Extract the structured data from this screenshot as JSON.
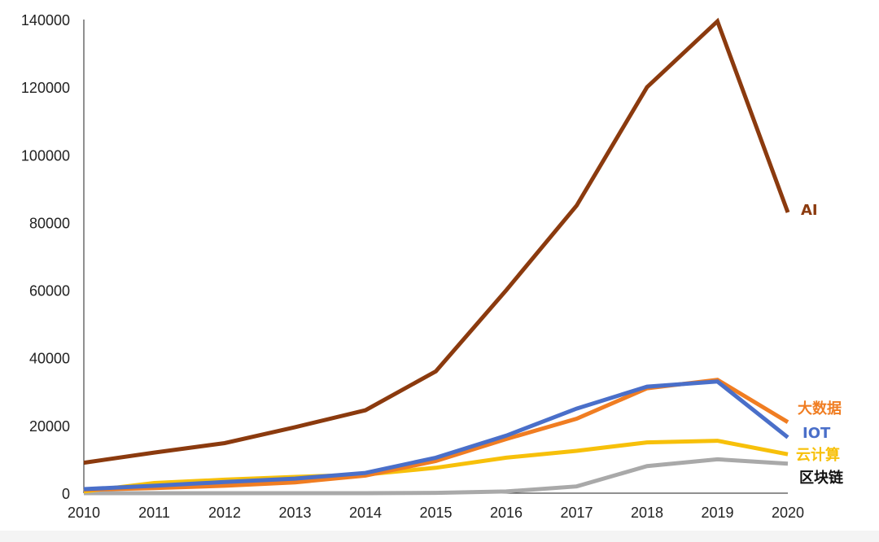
{
  "chart_data": {
    "type": "line",
    "title": "",
    "xlabel": "",
    "ylabel": "",
    "x": [
      "2010",
      "2011",
      "2012",
      "2013",
      "2014",
      "2015",
      "2016",
      "2017",
      "2018",
      "2019",
      "2020"
    ],
    "yticks": [
      "0",
      "20000",
      "40000",
      "60000",
      "80000",
      "100000",
      "120000",
      "140000"
    ],
    "ylim": [
      0,
      140000
    ],
    "grid": false,
    "legend": "direct labels at line ends",
    "series": [
      {
        "name": "AI",
        "color": "#8B3A0E",
        "values": [
          9000,
          12000,
          14800,
          19500,
          24500,
          36000,
          60000,
          85000,
          120000,
          139500,
          83000
        ]
      },
      {
        "name": "大数据",
        "color": "#F07D22",
        "values": [
          1000,
          1500,
          2200,
          3200,
          5200,
          9500,
          16000,
          22000,
          31000,
          33500,
          21000
        ]
      },
      {
        "name": "IOT",
        "color": "#4A6FC9",
        "values": [
          1200,
          2200,
          3300,
          4300,
          6000,
          10500,
          17000,
          25000,
          31500,
          33000,
          16500
        ]
      },
      {
        "name": "云计算",
        "color": "#F7C00A",
        "values": [
          500,
          3000,
          4000,
          4800,
          5500,
          7500,
          10500,
          12500,
          15000,
          15500,
          11500
        ]
      },
      {
        "name": "区块链",
        "color": "#A9A9A9",
        "values": [
          0,
          0,
          0,
          0,
          0,
          100,
          500,
          2000,
          8000,
          10000,
          8700
        ]
      }
    ],
    "series_label_colors": [
      "#8B3A0E",
      "#F07D22",
      "#4A6FC9",
      "#F7C00A",
      "#111111"
    ]
  }
}
